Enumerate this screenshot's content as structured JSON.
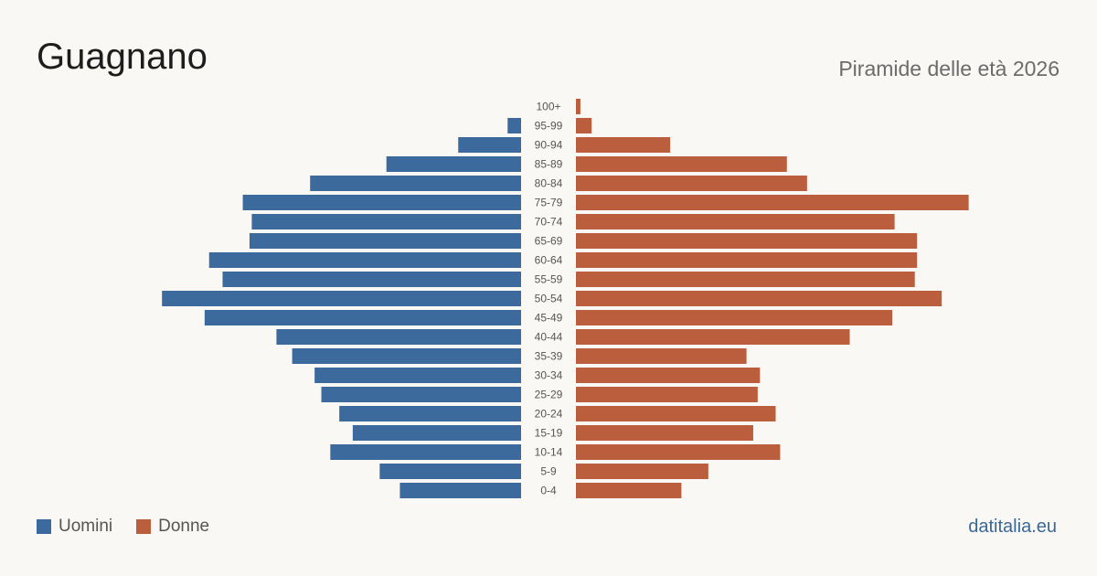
{
  "title": "Guagnano",
  "subtitle": "Piramide delle età 2026",
  "source": "datitalia.eu",
  "colors": {
    "men": "#3c6a9c",
    "women": "#bb5e3e",
    "background": "#f9f8f4"
  },
  "chart_data": {
    "type": "bar",
    "orientation": "horizontal-pyramid",
    "categories": [
      "100+",
      "95-99",
      "90-94",
      "85-89",
      "80-84",
      "75-79",
      "70-74",
      "65-69",
      "60-64",
      "55-59",
      "50-54",
      "45-49",
      "40-44",
      "35-39",
      "30-34",
      "25-29",
      "20-24",
      "15-19",
      "10-14",
      "5-9",
      "0-4"
    ],
    "series": [
      {
        "name": "Uomini",
        "color": "#3c6a9c",
        "values": [
          0,
          6,
          28,
          60,
          94,
          124,
          120,
          121,
          139,
          133,
          160,
          141,
          109,
          102,
          92,
          89,
          81,
          75,
          85,
          63,
          54
        ]
      },
      {
        "name": "Donne",
        "color": "#bb5e3e",
        "values": [
          2,
          7,
          42,
          94,
          103,
          175,
          142,
          152,
          152,
          151,
          163,
          141,
          122,
          76,
          82,
          81,
          89,
          79,
          91,
          59,
          47
        ]
      }
    ],
    "xlabel": "",
    "ylabel": "",
    "legend": "bottom-left",
    "grid": false
  },
  "legend": [
    {
      "label": "Uomini",
      "color": "#3c6a9c"
    },
    {
      "label": "Donne",
      "color": "#bb5e3e"
    }
  ]
}
